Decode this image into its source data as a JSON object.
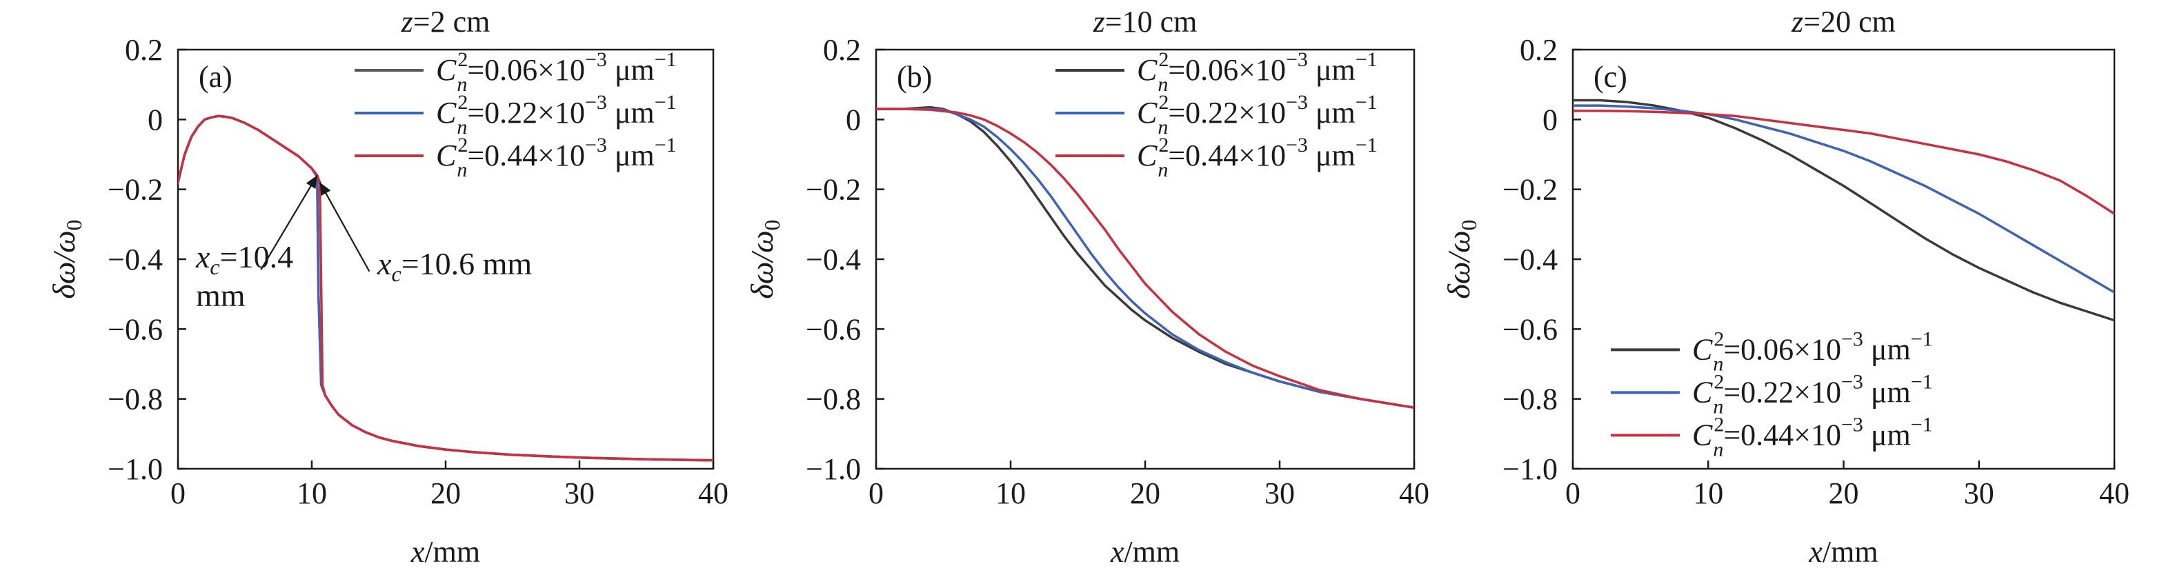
{
  "figure": {
    "panels": [
      {
        "id": "a",
        "tag": "(a)",
        "title": {
          "italic": "z",
          "rest": "=2 cm"
        },
        "xlabel": {
          "italic": "x",
          "rest": "/mm"
        },
        "ylabel": {
          "italic": "δω/ω",
          "sub": "0"
        },
        "annotations": [
          {
            "italic": "x",
            "sub": "c",
            "value": "=10.4",
            "unit": "mm",
            "points_to": [
              10.4,
              -0.16
            ]
          },
          {
            "italic": "x",
            "sub": "c",
            "value": "=10.6 mm",
            "points_to": [
              10.6,
              -0.18
            ]
          }
        ]
      },
      {
        "id": "b",
        "tag": "(b)",
        "title": {
          "italic": "z",
          "rest": "=10 cm"
        },
        "xlabel": {
          "italic": "x",
          "rest": "/mm"
        },
        "ylabel": {
          "italic": "δω/ω",
          "sub": "0"
        },
        "annotations": []
      },
      {
        "id": "c",
        "tag": "(c)",
        "title": {
          "italic": "z",
          "rest": "=20 cm"
        },
        "xlabel": {
          "italic": "x",
          "rest": "/mm"
        },
        "ylabel": {
          "italic": "δω/ω",
          "sub": "0"
        },
        "annotations": []
      }
    ],
    "legend_items": [
      {
        "C": "C",
        "sup": "2",
        "sub": "n",
        "value": "=0.06×10",
        "exp": "−3",
        "unit": " μm",
        "unit_exp": "−1"
      },
      {
        "C": "C",
        "sup": "2",
        "sub": "n",
        "value": "=0.22×10",
        "exp": "−3",
        "unit": " μm",
        "unit_exp": "−1"
      },
      {
        "C": "C",
        "sup": "2",
        "sub": "n",
        "value": "=0.44×10",
        "exp": "−3",
        "unit": " μm",
        "unit_exp": "−1"
      }
    ],
    "axis_color": "#1a1a1a"
  },
  "chart_data": [
    {
      "type": "line",
      "panel": "a",
      "title": "z=2 cm",
      "xlabel": "x/mm",
      "ylabel": "δω/ω0",
      "xlim": [
        0,
        40
      ],
      "ylim": [
        -1.0,
        0.2
      ],
      "xticks": [
        0,
        10,
        20,
        30,
        40
      ],
      "yticks": [
        -1.0,
        -0.8,
        -0.6,
        -0.4,
        -0.2,
        0,
        0.2
      ],
      "ytick_labels": [
        "−1.0",
        "−0.8",
        "−0.6",
        "−0.4",
        "−0.2",
        "0",
        "0.2"
      ],
      "grid": false,
      "legend_position": "top-right",
      "series": [
        {
          "name": "Cn2=0.06×10−3 μm−1",
          "color": "#5a5a5a",
          "x": [
            0,
            0.5,
            1,
            1.5,
            2,
            2.5,
            3,
            3.5,
            4,
            5,
            6,
            7,
            8,
            9,
            10,
            10.4,
            10.5,
            10.7,
            11,
            11.5,
            12,
            13,
            14,
            15,
            16,
            18,
            20,
            22,
            25,
            28,
            30,
            35,
            40
          ],
          "y": [
            -0.18,
            -0.1,
            -0.05,
            -0.02,
            0.0,
            0.006,
            0.01,
            0.008,
            0.005,
            -0.01,
            -0.03,
            -0.055,
            -0.08,
            -0.105,
            -0.14,
            -0.165,
            -0.5,
            -0.76,
            -0.79,
            -0.82,
            -0.845,
            -0.875,
            -0.895,
            -0.91,
            -0.92,
            -0.935,
            -0.945,
            -0.952,
            -0.96,
            -0.965,
            -0.968,
            -0.973,
            -0.976
          ]
        },
        {
          "name": "Cn2=0.22×10−3 μm−1",
          "color": "#3d63b7",
          "x": [
            0,
            0.5,
            1,
            1.5,
            2,
            2.5,
            3,
            3.5,
            4,
            5,
            6,
            7,
            8,
            9,
            10,
            10.4,
            10.5,
            10.7,
            11,
            11.5,
            12,
            13,
            14,
            15,
            16,
            18,
            20,
            22,
            25,
            28,
            30,
            35,
            40
          ],
          "y": [
            -0.18,
            -0.1,
            -0.05,
            -0.02,
            0.0,
            0.006,
            0.01,
            0.008,
            0.005,
            -0.01,
            -0.03,
            -0.055,
            -0.08,
            -0.105,
            -0.14,
            -0.165,
            -0.5,
            -0.76,
            -0.79,
            -0.82,
            -0.845,
            -0.875,
            -0.895,
            -0.91,
            -0.92,
            -0.935,
            -0.945,
            -0.952,
            -0.96,
            -0.965,
            -0.968,
            -0.973,
            -0.976
          ]
        },
        {
          "name": "Cn2=0.44×10−3 μm−1",
          "color": "#c8303f",
          "x": [
            0,
            0.5,
            1,
            1.5,
            2,
            2.5,
            3,
            3.5,
            4,
            5,
            6,
            7,
            8,
            9,
            10,
            10.4,
            10.6,
            10.8,
            11,
            11.5,
            12,
            13,
            14,
            15,
            16,
            18,
            20,
            22,
            25,
            28,
            30,
            35,
            40
          ],
          "y": [
            -0.18,
            -0.1,
            -0.05,
            -0.02,
            0.0,
            0.006,
            0.01,
            0.008,
            0.005,
            -0.01,
            -0.03,
            -0.055,
            -0.08,
            -0.105,
            -0.14,
            -0.16,
            -0.18,
            -0.76,
            -0.79,
            -0.82,
            -0.845,
            -0.875,
            -0.895,
            -0.91,
            -0.92,
            -0.935,
            -0.945,
            -0.952,
            -0.96,
            -0.965,
            -0.968,
            -0.973,
            -0.976
          ]
        }
      ]
    },
    {
      "type": "line",
      "panel": "b",
      "title": "z=10 cm",
      "xlabel": "x/mm",
      "ylabel": "δω/ω0",
      "xlim": [
        0,
        40
      ],
      "ylim": [
        -1.0,
        0.2
      ],
      "xticks": [
        0,
        10,
        20,
        30,
        40
      ],
      "yticks": [
        -1.0,
        -0.8,
        -0.6,
        -0.4,
        -0.2,
        0,
        0.2
      ],
      "ytick_labels": [
        "−1.0",
        "−0.8",
        "−0.6",
        "−0.4",
        "−0.2",
        "0",
        "0.2"
      ],
      "grid": false,
      "legend_position": "top-right",
      "series": [
        {
          "name": "Cn2=0.06×10−3 μm−1",
          "color": "#3a3a3a",
          "x": [
            0,
            2,
            4,
            5,
            6,
            7,
            8,
            9,
            10,
            11,
            12,
            13,
            14,
            15,
            16,
            17,
            18,
            19,
            20,
            22,
            24,
            26,
            28,
            30,
            33,
            36,
            40
          ],
          "y": [
            0.03,
            0.03,
            0.035,
            0.03,
            0.015,
            -0.005,
            -0.035,
            -0.075,
            -0.12,
            -0.17,
            -0.225,
            -0.28,
            -0.335,
            -0.385,
            -0.43,
            -0.475,
            -0.51,
            -0.545,
            -0.575,
            -0.625,
            -0.665,
            -0.7,
            -0.725,
            -0.75,
            -0.78,
            -0.8,
            -0.825
          ]
        },
        {
          "name": "Cn2=0.22×10−3 μm−1",
          "color": "#3d63b7",
          "x": [
            0,
            2,
            4,
            5,
            6,
            7,
            8,
            9,
            10,
            11,
            12,
            13,
            14,
            15,
            16,
            17,
            18,
            19,
            20,
            22,
            24,
            26,
            28,
            30,
            33,
            36,
            40
          ],
          "y": [
            0.03,
            0.03,
            0.03,
            0.028,
            0.015,
            0.0,
            -0.02,
            -0.05,
            -0.085,
            -0.125,
            -0.17,
            -0.22,
            -0.275,
            -0.33,
            -0.385,
            -0.435,
            -0.48,
            -0.52,
            -0.555,
            -0.615,
            -0.66,
            -0.695,
            -0.725,
            -0.75,
            -0.78,
            -0.8,
            -0.825
          ]
        },
        {
          "name": "Cn2=0.44×10−3 μm−1",
          "color": "#c8303f",
          "x": [
            0,
            2,
            4,
            6,
            7,
            8,
            9,
            10,
            11,
            12,
            13,
            14,
            15,
            16,
            17,
            18,
            19,
            20,
            21,
            22,
            24,
            26,
            28,
            30,
            33,
            36,
            40
          ],
          "y": [
            0.03,
            0.03,
            0.028,
            0.02,
            0.012,
            0.0,
            -0.018,
            -0.04,
            -0.065,
            -0.095,
            -0.13,
            -0.17,
            -0.215,
            -0.265,
            -0.315,
            -0.37,
            -0.42,
            -0.47,
            -0.51,
            -0.55,
            -0.615,
            -0.665,
            -0.705,
            -0.735,
            -0.775,
            -0.8,
            -0.825
          ]
        }
      ]
    },
    {
      "type": "line",
      "panel": "c",
      "title": "z=20 cm",
      "xlabel": "x/mm",
      "ylabel": "δω/ω0",
      "xlim": [
        0,
        40
      ],
      "ylim": [
        -1.0,
        0.2
      ],
      "xticks": [
        0,
        10,
        20,
        30,
        40
      ],
      "yticks": [
        -1.0,
        -0.8,
        -0.6,
        -0.4,
        -0.2,
        0,
        0.2
      ],
      "ytick_labels": [
        "−1.0",
        "−0.8",
        "−0.6",
        "−0.4",
        "−0.2",
        "0",
        "0.2"
      ],
      "grid": false,
      "legend_position": "bottom-right",
      "series": [
        {
          "name": "Cn2=0.06×10−3 μm−1",
          "color": "#3a3a3a",
          "x": [
            0,
            2,
            4,
            6,
            8,
            10,
            12,
            14,
            16,
            18,
            20,
            22,
            24,
            26,
            28,
            30,
            32,
            34,
            36,
            38,
            40
          ],
          "y": [
            0.055,
            0.055,
            0.05,
            0.04,
            0.025,
            0.005,
            -0.025,
            -0.06,
            -0.1,
            -0.145,
            -0.19,
            -0.24,
            -0.29,
            -0.34,
            -0.385,
            -0.425,
            -0.46,
            -0.495,
            -0.525,
            -0.55,
            -0.575
          ]
        },
        {
          "name": "Cn2=0.22×10−3 μm−1",
          "color": "#3d63b7",
          "x": [
            0,
            2,
            4,
            6,
            8,
            10,
            12,
            14,
            16,
            18,
            20,
            22,
            24,
            26,
            28,
            30,
            32,
            34,
            36,
            38,
            40
          ],
          "y": [
            0.04,
            0.04,
            0.037,
            0.032,
            0.025,
            0.015,
            0.0,
            -0.02,
            -0.04,
            -0.065,
            -0.09,
            -0.12,
            -0.155,
            -0.19,
            -0.23,
            -0.27,
            -0.315,
            -0.36,
            -0.405,
            -0.45,
            -0.495
          ]
        },
        {
          "name": "Cn2=0.44×10−3 μm−1",
          "color": "#c8303f",
          "x": [
            0,
            2,
            4,
            6,
            8,
            10,
            12,
            14,
            16,
            18,
            20,
            22,
            24,
            26,
            28,
            30,
            32,
            34,
            36,
            38,
            40
          ],
          "y": [
            0.025,
            0.025,
            0.024,
            0.022,
            0.019,
            0.015,
            0.01,
            0.0,
            -0.01,
            -0.02,
            -0.03,
            -0.04,
            -0.055,
            -0.07,
            -0.085,
            -0.1,
            -0.12,
            -0.145,
            -0.175,
            -0.22,
            -0.27
          ]
        }
      ]
    }
  ]
}
